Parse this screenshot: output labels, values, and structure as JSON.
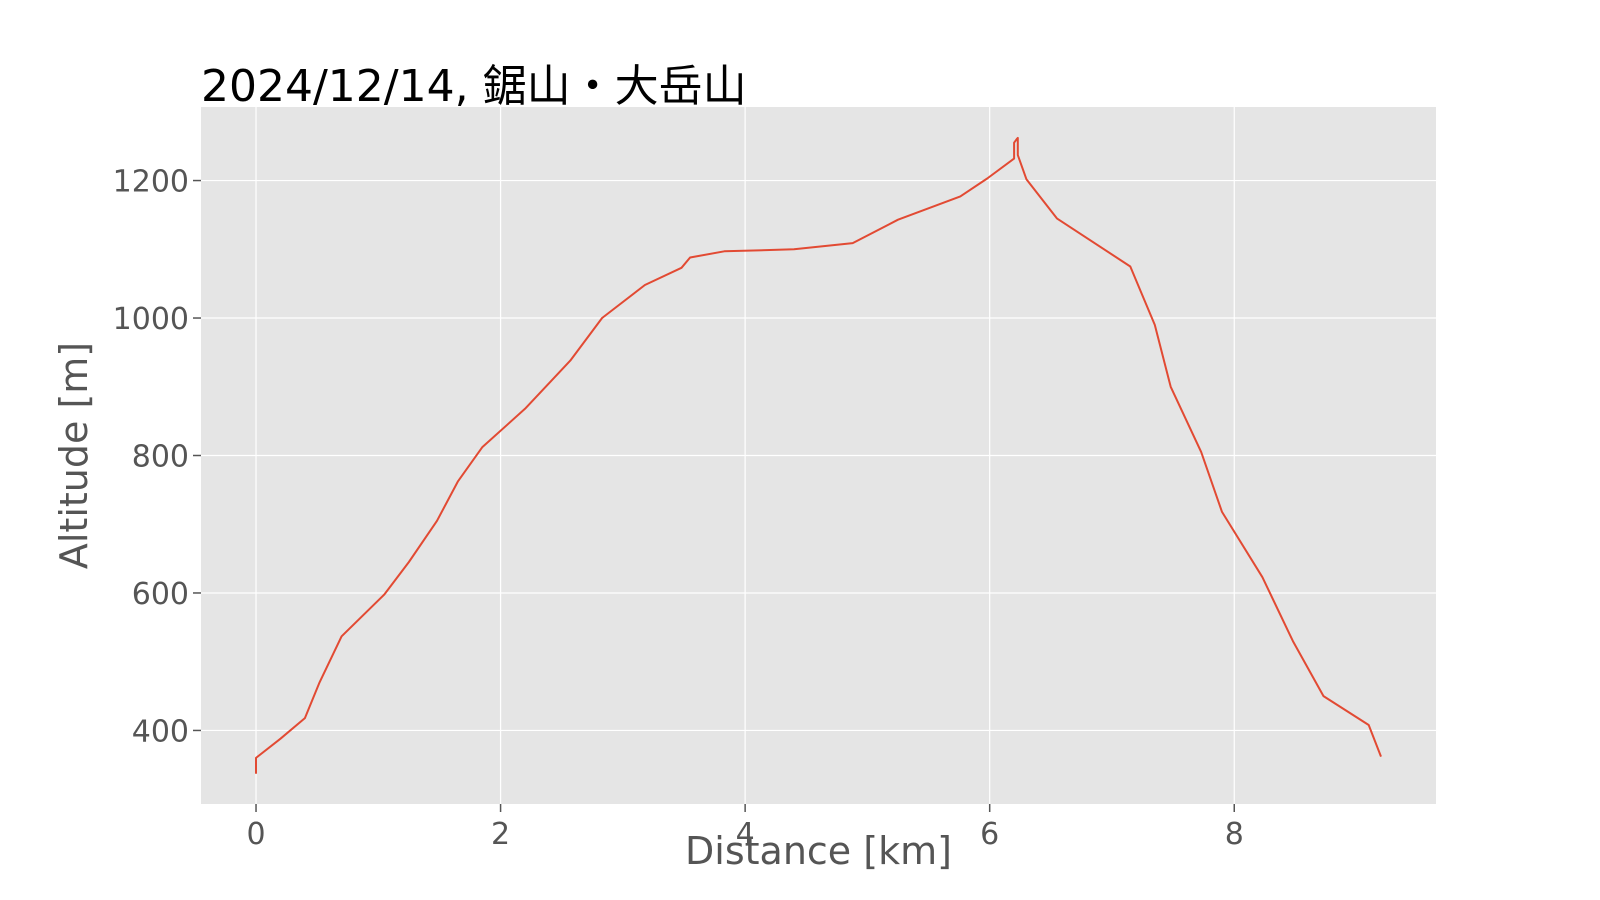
{
  "chart_data": {
    "type": "line",
    "title": "2024/12/14, 鋸山・大岳山",
    "xlabel": "Distance [km]",
    "ylabel": "Altitude [m]",
    "xlim": [
      -0.45,
      9.65
    ],
    "ylim": [
      293,
      1307
    ],
    "xticks": [
      0,
      2,
      4,
      6,
      8
    ],
    "yticks": [
      400,
      600,
      800,
      1000,
      1200
    ],
    "grid": true,
    "background": "#e5e5e5",
    "line_color": "#e24a33",
    "series": [
      {
        "x": [
          0.0,
          0.0,
          0.2,
          0.4,
          0.52,
          0.7,
          1.05,
          1.25,
          1.48,
          1.65,
          1.85,
          2.2,
          2.57,
          2.83,
          3.18,
          3.48,
          3.55,
          3.83,
          4.4,
          4.88,
          5.25,
          5.76,
          5.98,
          6.2,
          6.2,
          6.22,
          6.23,
          6.23,
          6.3,
          6.55,
          7.15,
          7.35,
          7.48,
          7.73,
          7.9,
          8.23,
          8.48,
          8.73,
          9.1,
          9.2
        ],
        "y": [
          337,
          360,
          388,
          418,
          470,
          537,
          598,
          645,
          705,
          762,
          812,
          868,
          938,
          1000,
          1048,
          1073,
          1088,
          1097,
          1100,
          1109,
          1143,
          1177,
          1203,
          1232,
          1255,
          1260,
          1262,
          1237,
          1202,
          1145,
          1075,
          990,
          900,
          805,
          718,
          623,
          530,
          450,
          408,
          362
        ]
      }
    ]
  }
}
